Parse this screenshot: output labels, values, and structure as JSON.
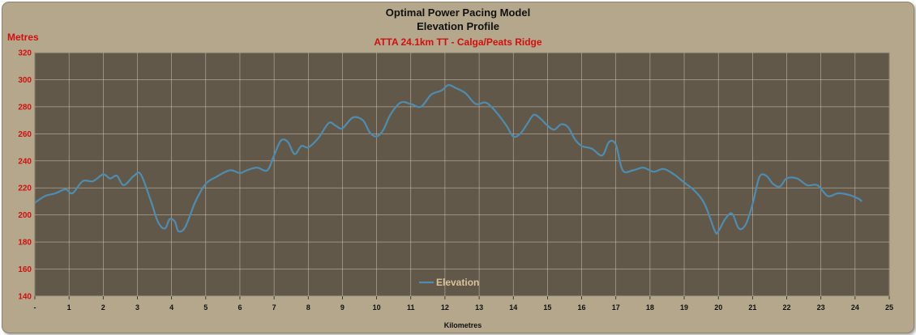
{
  "chart_data": {
    "type": "line",
    "title": "Optimal Power Pacing Model",
    "subtitle": "Elevation Profile",
    "subtitle2": "ATTA 24.1km TT - Calga/Peats Ridge",
    "ylabel": "Metres",
    "xlabel": "Kilometres",
    "ylim": [
      140,
      320
    ],
    "xlim": [
      0,
      25
    ],
    "y_ticks": [
      "140",
      "160",
      "180",
      "200",
      "220",
      "240",
      "260",
      "280",
      "300",
      "320"
    ],
    "x_ticks": [
      "-",
      "1",
      "2",
      "3",
      "4",
      "5",
      "6",
      "7",
      "8",
      "9",
      "10",
      "11",
      "12",
      "13",
      "14",
      "15",
      "16",
      "17",
      "18",
      "19",
      "20",
      "21",
      "22",
      "23",
      "24",
      "25"
    ],
    "grid": true,
    "legend_position": "bottom-center",
    "colors": {
      "plot_bg": "#62584a",
      "line": "#4e8cb0",
      "frame": "#b4a78b",
      "axis_text": "#d01010"
    },
    "series": [
      {
        "name": "Elevation",
        "x": [
          0,
          0.3,
          0.6,
          0.9,
          1.1,
          1.4,
          1.7,
          2.0,
          2.2,
          2.4,
          2.6,
          2.9,
          3.1,
          3.4,
          3.6,
          3.8,
          3.95,
          4.1,
          4.2,
          4.4,
          4.7,
          5.0,
          5.3,
          5.7,
          6.0,
          6.2,
          6.5,
          6.8,
          7.0,
          7.2,
          7.4,
          7.6,
          7.8,
          8.0,
          8.3,
          8.6,
          8.8,
          9.0,
          9.3,
          9.6,
          9.8,
          10.0,
          10.2,
          10.4,
          10.7,
          11.0,
          11.3,
          11.6,
          11.9,
          12.1,
          12.3,
          12.6,
          12.9,
          13.2,
          13.5,
          13.8,
          14.0,
          14.2,
          14.4,
          14.6,
          14.8,
          15.0,
          15.2,
          15.4,
          15.6,
          15.8,
          16.0,
          16.3,
          16.6,
          16.8,
          17.0,
          17.2,
          17.5,
          17.8,
          18.1,
          18.4,
          18.7,
          19.0,
          19.3,
          19.6,
          19.9,
          20.0,
          20.2,
          20.4,
          20.6,
          20.8,
          21.0,
          21.2,
          21.4,
          21.6,
          21.8,
          22.0,
          22.3,
          22.6,
          22.9,
          23.2,
          23.5,
          23.8,
          24.1,
          24.2
        ],
        "values": [
          209,
          214,
          216,
          219,
          216,
          225,
          225,
          230,
          227,
          229,
          222,
          229,
          230,
          210,
          195,
          190,
          197,
          195,
          188,
          191,
          210,
          223,
          228,
          233,
          231,
          233,
          235,
          233,
          244,
          255,
          254,
          245,
          251,
          250,
          257,
          268,
          266,
          264,
          272,
          270,
          261,
          258,
          263,
          274,
          283,
          282,
          280,
          289,
          292,
          296,
          294,
          290,
          282,
          283,
          276,
          266,
          258,
          260,
          267,
          274,
          271,
          266,
          263,
          267,
          265,
          256,
          251,
          249,
          244,
          254,
          252,
          233,
          233,
          235,
          232,
          234,
          230,
          224,
          218,
          208,
          188,
          188,
          197,
          201,
          190,
          193,
          208,
          228,
          229,
          223,
          221,
          227,
          227,
          222,
          222,
          214,
          216,
          215,
          212,
          210
        ]
      }
    ]
  }
}
